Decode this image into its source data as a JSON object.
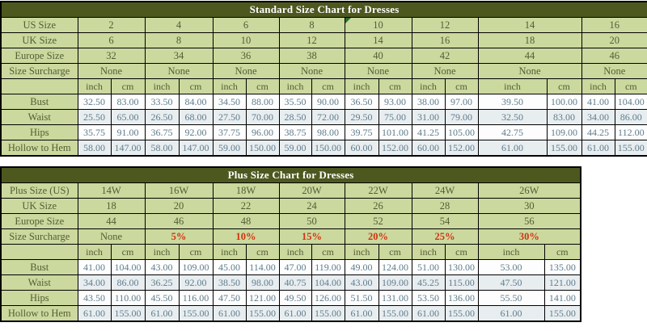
{
  "colors": {
    "title_bar_bg": "#4d581f",
    "title_text": "#ffffff",
    "header_cell_bg": "#cbd89e",
    "header_text": "#535e33",
    "data_text": "#5e7d8c",
    "alt_row_bg": "#e8edf0",
    "surcharge_red": "#d13410",
    "border": "#000000",
    "comment_marker_green": "#2d6b2e"
  },
  "standard_table": {
    "title": "Standard Size Chart for Dresses",
    "unit_headers": [
      "inch",
      "cm"
    ],
    "info_rows": [
      {
        "label": "US Size",
        "values": [
          "2",
          "4",
          "6",
          "8",
          "10",
          "12",
          "14",
          "16"
        ]
      },
      {
        "label": "UK Size",
        "values": [
          "6",
          "8",
          "10",
          "12",
          "14",
          "16",
          "18",
          "20"
        ]
      },
      {
        "label": "Europe Size",
        "values": [
          "32",
          "34",
          "36",
          "38",
          "40",
          "42",
          "44",
          "46"
        ]
      },
      {
        "label": "Size Surcharge",
        "values": [
          "None",
          "None",
          "None",
          "None",
          "None",
          "None",
          "None",
          "None"
        ]
      }
    ],
    "marker_cell": {
      "info_row_index": 0,
      "size_index": 4,
      "note": "green corner triangle on US Size 10 cell"
    },
    "measurement_rows": [
      {
        "label": "Bust",
        "values": [
          [
            "32.50",
            "83.00"
          ],
          [
            "33.50",
            "84.00"
          ],
          [
            "34.50",
            "88.00"
          ],
          [
            "35.50",
            "90.00"
          ],
          [
            "36.50",
            "93.00"
          ],
          [
            "38.00",
            "97.00"
          ],
          [
            "39.50",
            "100.00"
          ],
          [
            "41.00",
            "104.00"
          ]
        ]
      },
      {
        "label": "Waist",
        "values": [
          [
            "25.50",
            "65.00"
          ],
          [
            "26.50",
            "68.00"
          ],
          [
            "27.50",
            "70.00"
          ],
          [
            "28.50",
            "72.00"
          ],
          [
            "29.50",
            "75.00"
          ],
          [
            "31.00",
            "79.00"
          ],
          [
            "32.50",
            "83.00"
          ],
          [
            "34.00",
            "86.00"
          ]
        ]
      },
      {
        "label": "Hips",
        "values": [
          [
            "35.75",
            "91.00"
          ],
          [
            "36.75",
            "92.00"
          ],
          [
            "37.75",
            "96.00"
          ],
          [
            "38.75",
            "98.00"
          ],
          [
            "39.75",
            "101.00"
          ],
          [
            "41.25",
            "105.00"
          ],
          [
            "42.75",
            "109.00"
          ],
          [
            "44.25",
            "112.00"
          ]
        ]
      },
      {
        "label": "Hollow to Hem",
        "values": [
          [
            "58.00",
            "147.00"
          ],
          [
            "58.00",
            "147.00"
          ],
          [
            "59.00",
            "150.00"
          ],
          [
            "59.00",
            "150.00"
          ],
          [
            "60.00",
            "152.00"
          ],
          [
            "60.00",
            "152.00"
          ],
          [
            "61.00",
            "155.00"
          ],
          [
            "61.00",
            "155.00"
          ]
        ]
      }
    ]
  },
  "plus_table": {
    "title": "Plus Size Chart for Dresses",
    "unit_headers": [
      "inch",
      "cm"
    ],
    "info_rows": [
      {
        "label": "Plus Size (US)",
        "values": [
          "14W",
          "16W",
          "18W",
          "20W",
          "22W",
          "24W",
          "26W"
        ]
      },
      {
        "label": "UK Size",
        "values": [
          "18",
          "20",
          "22",
          "24",
          "26",
          "28",
          "30"
        ]
      },
      {
        "label": "Europe Size",
        "values": [
          "44",
          "46",
          "48",
          "50",
          "52",
          "54",
          "56"
        ]
      },
      {
        "label": "Size Surcharge",
        "values": [
          "None",
          "5%",
          "10%",
          "15%",
          "20%",
          "25%",
          "30%"
        ]
      }
    ],
    "measurement_rows": [
      {
        "label": "Bust",
        "values": [
          [
            "41.00",
            "104.00"
          ],
          [
            "43.00",
            "109.00"
          ],
          [
            "45.00",
            "114.00"
          ],
          [
            "47.00",
            "119.00"
          ],
          [
            "49.00",
            "124.00"
          ],
          [
            "51.00",
            "130.00"
          ],
          [
            "53.00",
            "135.00"
          ]
        ]
      },
      {
        "label": "Waist",
        "values": [
          [
            "34.00",
            "86.00"
          ],
          [
            "36.25",
            "92.00"
          ],
          [
            "38.50",
            "98.00"
          ],
          [
            "40.75",
            "104.00"
          ],
          [
            "43.00",
            "109.00"
          ],
          [
            "45.25",
            "115.00"
          ],
          [
            "47.50",
            "121.00"
          ]
        ]
      },
      {
        "label": "Hips",
        "values": [
          [
            "43.50",
            "110.00"
          ],
          [
            "45.50",
            "116.00"
          ],
          [
            "47.50",
            "121.00"
          ],
          [
            "49.50",
            "126.00"
          ],
          [
            "51.50",
            "131.00"
          ],
          [
            "53.50",
            "136.00"
          ],
          [
            "55.50",
            "141.00"
          ]
        ]
      },
      {
        "label": "Hollow to Hem",
        "values": [
          [
            "61.00",
            "155.00"
          ],
          [
            "61.00",
            "155.00"
          ],
          [
            "61.00",
            "155.00"
          ],
          [
            "61.00",
            "155.00"
          ],
          [
            "61.00",
            "155.00"
          ],
          [
            "61.00",
            "155.00"
          ],
          [
            "61.00",
            "155.00"
          ]
        ]
      }
    ]
  }
}
